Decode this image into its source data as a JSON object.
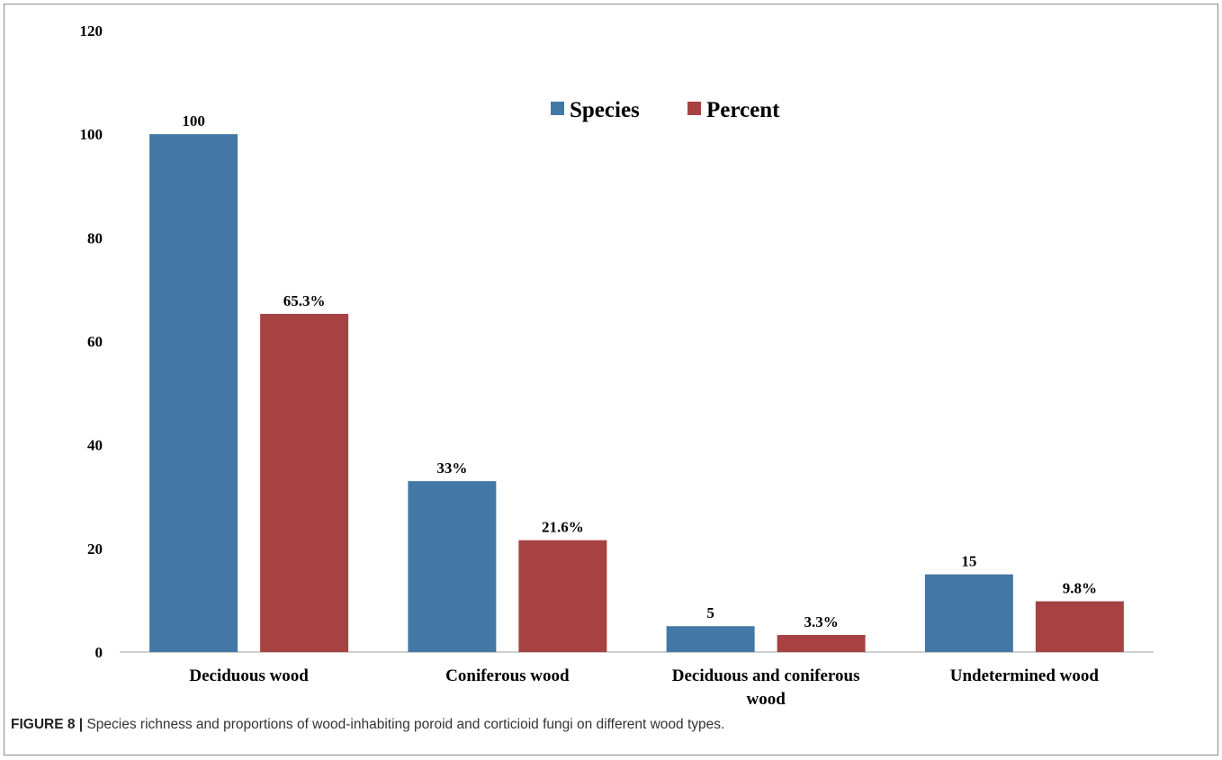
{
  "caption": {
    "figure_label": "FIGURE 8 |",
    "text": "Species richness and proportions of wood-inhabiting poroid and corticioid fungi on different wood types."
  },
  "chart_data": {
    "type": "bar",
    "title": "",
    "xlabel": "",
    "ylabel": "",
    "categories": [
      [
        "Deciduous wood"
      ],
      [
        "Coniferous wood"
      ],
      [
        "Deciduous and coniferous",
        "wood"
      ],
      [
        "Undetermined wood"
      ]
    ],
    "series": [
      {
        "name": "Species",
        "color": "#4378a6",
        "values": [
          100,
          33,
          5,
          15
        ],
        "labels": [
          "100",
          "33%",
          "5",
          "15"
        ]
      },
      {
        "name": "Percent",
        "color": "#a64241",
        "values": [
          65.3,
          21.6,
          3.3,
          9.8
        ],
        "labels": [
          "65.3%",
          "21.6%",
          "3.3%",
          "9.8%"
        ]
      }
    ],
    "ylim": [
      0,
      120
    ],
    "yticks": [
      "0",
      "20",
      "40",
      "60",
      "80",
      "100",
      "120"
    ],
    "grid": false,
    "legend": {
      "position": "top-center"
    }
  }
}
